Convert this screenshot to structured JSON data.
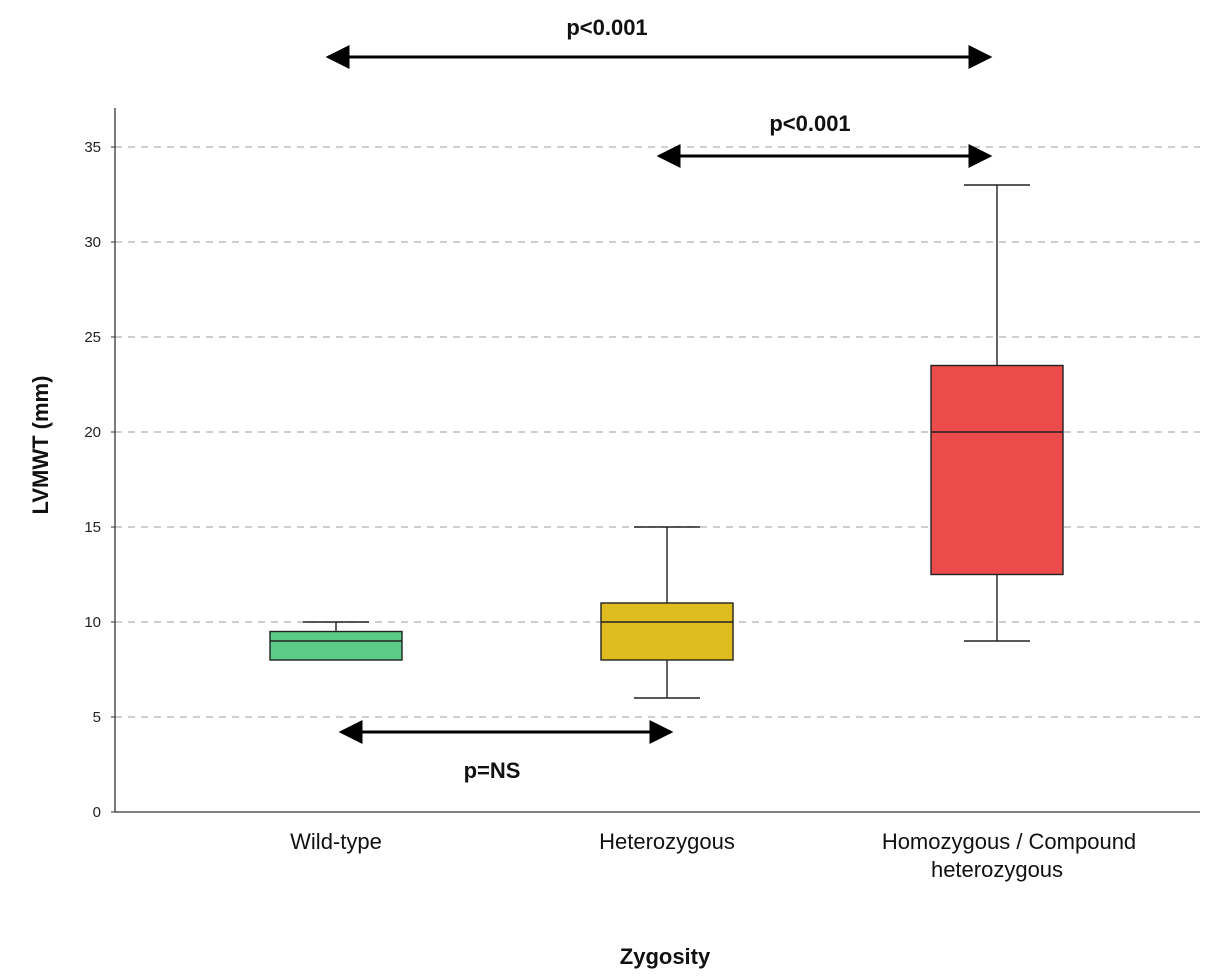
{
  "chart_data": {
    "type": "box",
    "title": "",
    "xlabel": "Zygosity",
    "ylabel": "LVMWT (mm)",
    "ylim": [
      0,
      37
    ],
    "yticks": [
      0,
      5,
      10,
      15,
      20,
      25,
      30,
      35
    ],
    "grid": "horizontal dashed",
    "categories": [
      {
        "label_lines": [
          "Wild-type"
        ],
        "label_anchor": "center"
      },
      {
        "label_lines": [
          "Heterozygous"
        ],
        "label_anchor": "center"
      },
      {
        "label_lines": [
          "Homozygous /    Compound",
          "heterozygous"
        ],
        "label_anchor": "wide"
      }
    ],
    "boxes": [
      {
        "whisker_low": 8,
        "q1": 8,
        "median": 9,
        "q3": 9.5,
        "whisker_high": 10,
        "color": "#5ccb87"
      },
      {
        "whisker_low": 6,
        "q1": 8,
        "median": 10,
        "q3": 11,
        "whisker_high": 15,
        "color": "#e0bd1e"
      },
      {
        "whisker_low": 9,
        "q1": 12.5,
        "median": 20,
        "q3": 23.5,
        "whisker_high": 33,
        "color": "#ec4b4b"
      }
    ],
    "comparisons": [
      {
        "from": 0,
        "to": 2,
        "label": "p<0.001",
        "position": "above-top"
      },
      {
        "from": 1,
        "to": 2,
        "label": "p<0.001",
        "position": "above-upper"
      },
      {
        "from": 0,
        "to": 1,
        "label": "p=NS",
        "position": "below-boxes"
      }
    ]
  }
}
